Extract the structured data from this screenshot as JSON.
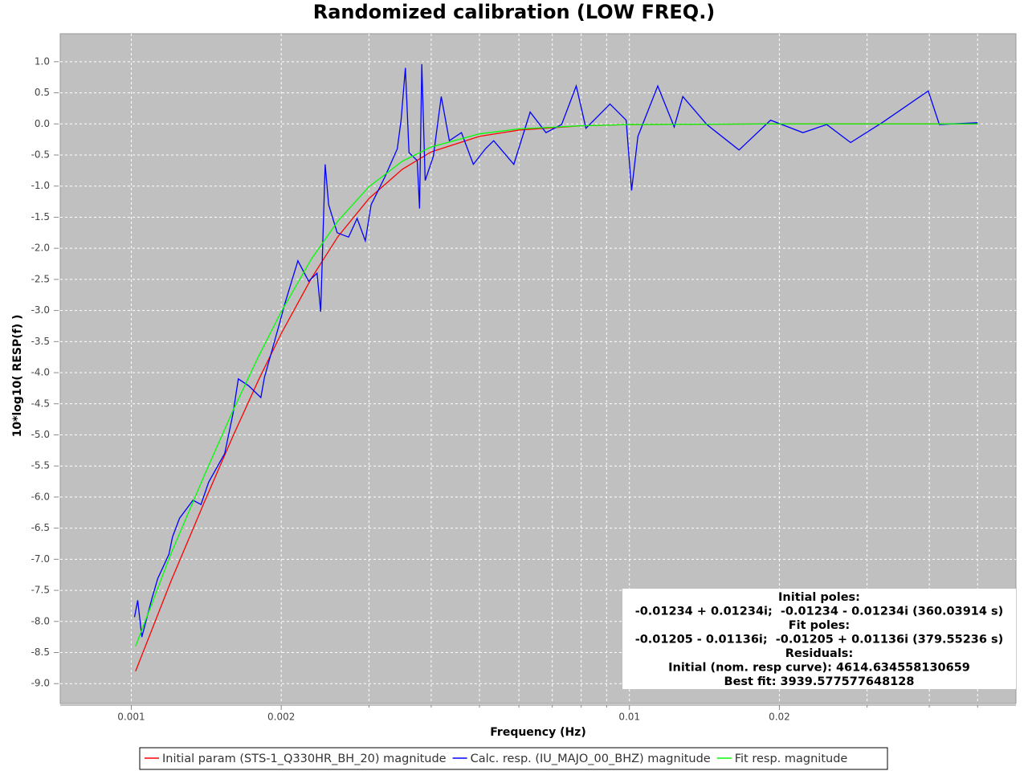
{
  "chart_data": {
    "type": "line",
    "title": "Randomized calibration (LOW FREQ.)",
    "x_label": "Frequency (Hz)",
    "y_label": "10*log10( RESP(f) )",
    "x_log": true,
    "grid": true,
    "xlim": [
      0.00072,
      0.0597
    ],
    "ylim": [
      -9.32,
      1.45
    ],
    "xticks": [
      0.001,
      0.002,
      0.01,
      0.02
    ],
    "x_minor_ticks": [
      0.003,
      0.004,
      0.005,
      0.006,
      0.007,
      0.008,
      0.009,
      0.03,
      0.04,
      0.05
    ],
    "yticks": [
      {
        "value": 1,
        "label": "1.0"
      },
      0.5,
      {
        "value": 0,
        "label": "0.0"
      },
      -0.5,
      {
        "value": -1,
        "label": "-1.0"
      },
      -1.5,
      {
        "value": -2,
        "label": "-2.0"
      },
      -2.5,
      {
        "value": -3,
        "label": "-3.0"
      },
      -3.5,
      {
        "value": -4,
        "label": "-4.0"
      },
      -4.5,
      {
        "value": -5,
        "label": "-5.0"
      },
      -5.5,
      {
        "value": -6,
        "label": "-6.0"
      },
      -6.5,
      {
        "value": -7,
        "label": "-7.0"
      },
      -7.5,
      {
        "value": -8,
        "label": "-8.0"
      },
      -8.5,
      {
        "value": -9,
        "label": "-9.0"
      }
    ],
    "series": [
      {
        "name": "Initial param (STS-1_Q330HR_BH_20) magnitude",
        "color": "#ff0000",
        "x": [
          0.00102,
          0.0012,
          0.0014,
          0.0016,
          0.0018,
          0.002,
          0.0023,
          0.0026,
          0.003,
          0.0035,
          0.004,
          0.005,
          0.006,
          0.008,
          0.01,
          0.02,
          0.05
        ],
        "values": [
          -8.8,
          -7.36,
          -6.09,
          -5.02,
          -4.12,
          -3.37,
          -2.48,
          -1.81,
          -1.2,
          -0.73,
          -0.45,
          -0.2,
          -0.1,
          -0.03,
          -0.01,
          0,
          0
        ]
      },
      {
        "name": "Calc. resp. (IU_MAJO_00_BHZ) magnitude",
        "color": "#0000ff",
        "x": [
          0.001015,
          0.00103,
          0.00105,
          0.0011,
          0.00113,
          0.00119,
          0.00121,
          0.00125,
          0.00133,
          0.00138,
          0.00143,
          0.00154,
          0.0016,
          0.00164,
          0.00172,
          0.00182,
          0.00185,
          0.00199,
          0.00203,
          0.00216,
          0.00227,
          0.00236,
          0.0024,
          0.00245,
          0.00249,
          0.00259,
          0.00273,
          0.00284,
          0.00295,
          0.00303,
          0.00323,
          0.00342,
          0.00348,
          0.00355,
          0.00361,
          0.00375,
          0.00379,
          0.00383,
          0.00389,
          0.00404,
          0.00419,
          0.00435,
          0.0046,
          0.00486,
          0.00514,
          0.00534,
          0.00586,
          0.00632,
          0.0068,
          0.00731,
          0.00782,
          0.00818,
          0.00914,
          0.00985,
          0.0101,
          0.0104,
          0.0114,
          0.0123,
          0.0128,
          0.0143,
          0.0166,
          0.0192,
          0.0223,
          0.0249,
          0.0278,
          0.0323,
          0.0398,
          0.0419,
          0.05
        ],
        "values": [
          -7.93,
          -7.66,
          -8.25,
          -7.63,
          -7.31,
          -6.92,
          -6.64,
          -6.34,
          -6.05,
          -6.12,
          -5.76,
          -5.3,
          -4.66,
          -4.1,
          -4.21,
          -4.4,
          -4.08,
          -3.17,
          -2.91,
          -2.2,
          -2.53,
          -2.4,
          -3.02,
          -0.65,
          -1.3,
          -1.75,
          -1.82,
          -1.52,
          -1.88,
          -1.3,
          -0.85,
          -0.4,
          0.06,
          0.9,
          -0.46,
          -0.59,
          -1.36,
          0.96,
          -0.91,
          -0.52,
          0.44,
          -0.27,
          -0.14,
          -0.65,
          -0.4,
          -0.27,
          -0.65,
          0.19,
          -0.14,
          -0.01,
          0.61,
          -0.07,
          0.32,
          0.06,
          -1.07,
          -0.2,
          0.61,
          -0.05,
          0.44,
          -0.01,
          -0.42,
          0.06,
          -0.14,
          -0.01,
          -0.3,
          0.03,
          0.53,
          -0.01,
          0.02
        ]
      },
      {
        "name": "Fit resp. magnitude",
        "color": "#00ff00",
        "x": [
          0.00102,
          0.0012,
          0.0014,
          0.0016,
          0.0018,
          0.002,
          0.0023,
          0.0026,
          0.003,
          0.0035,
          0.004,
          0.005,
          0.006,
          0.008,
          0.01,
          0.02,
          0.05
        ],
        "values": [
          -8.4,
          -6.92,
          -5.66,
          -4.61,
          -3.74,
          -3.02,
          -2.17,
          -1.56,
          -1.01,
          -0.6,
          -0.37,
          -0.16,
          -0.08,
          -0.03,
          -0.01,
          0,
          0
        ]
      }
    ],
    "annotation": [
      "Initial poles:",
      "-0.01234 + 0.01234i;  -0.01234 - 0.01234i (360.03914 s)",
      "Fit poles:",
      "-0.01205 - 0.01136i;  -0.01205 + 0.01136i (379.55236 s)",
      "Residuals:",
      "Initial (nom. resp curve): 4614.634558130659",
      "Best fit: 3939.577577648128"
    ]
  }
}
